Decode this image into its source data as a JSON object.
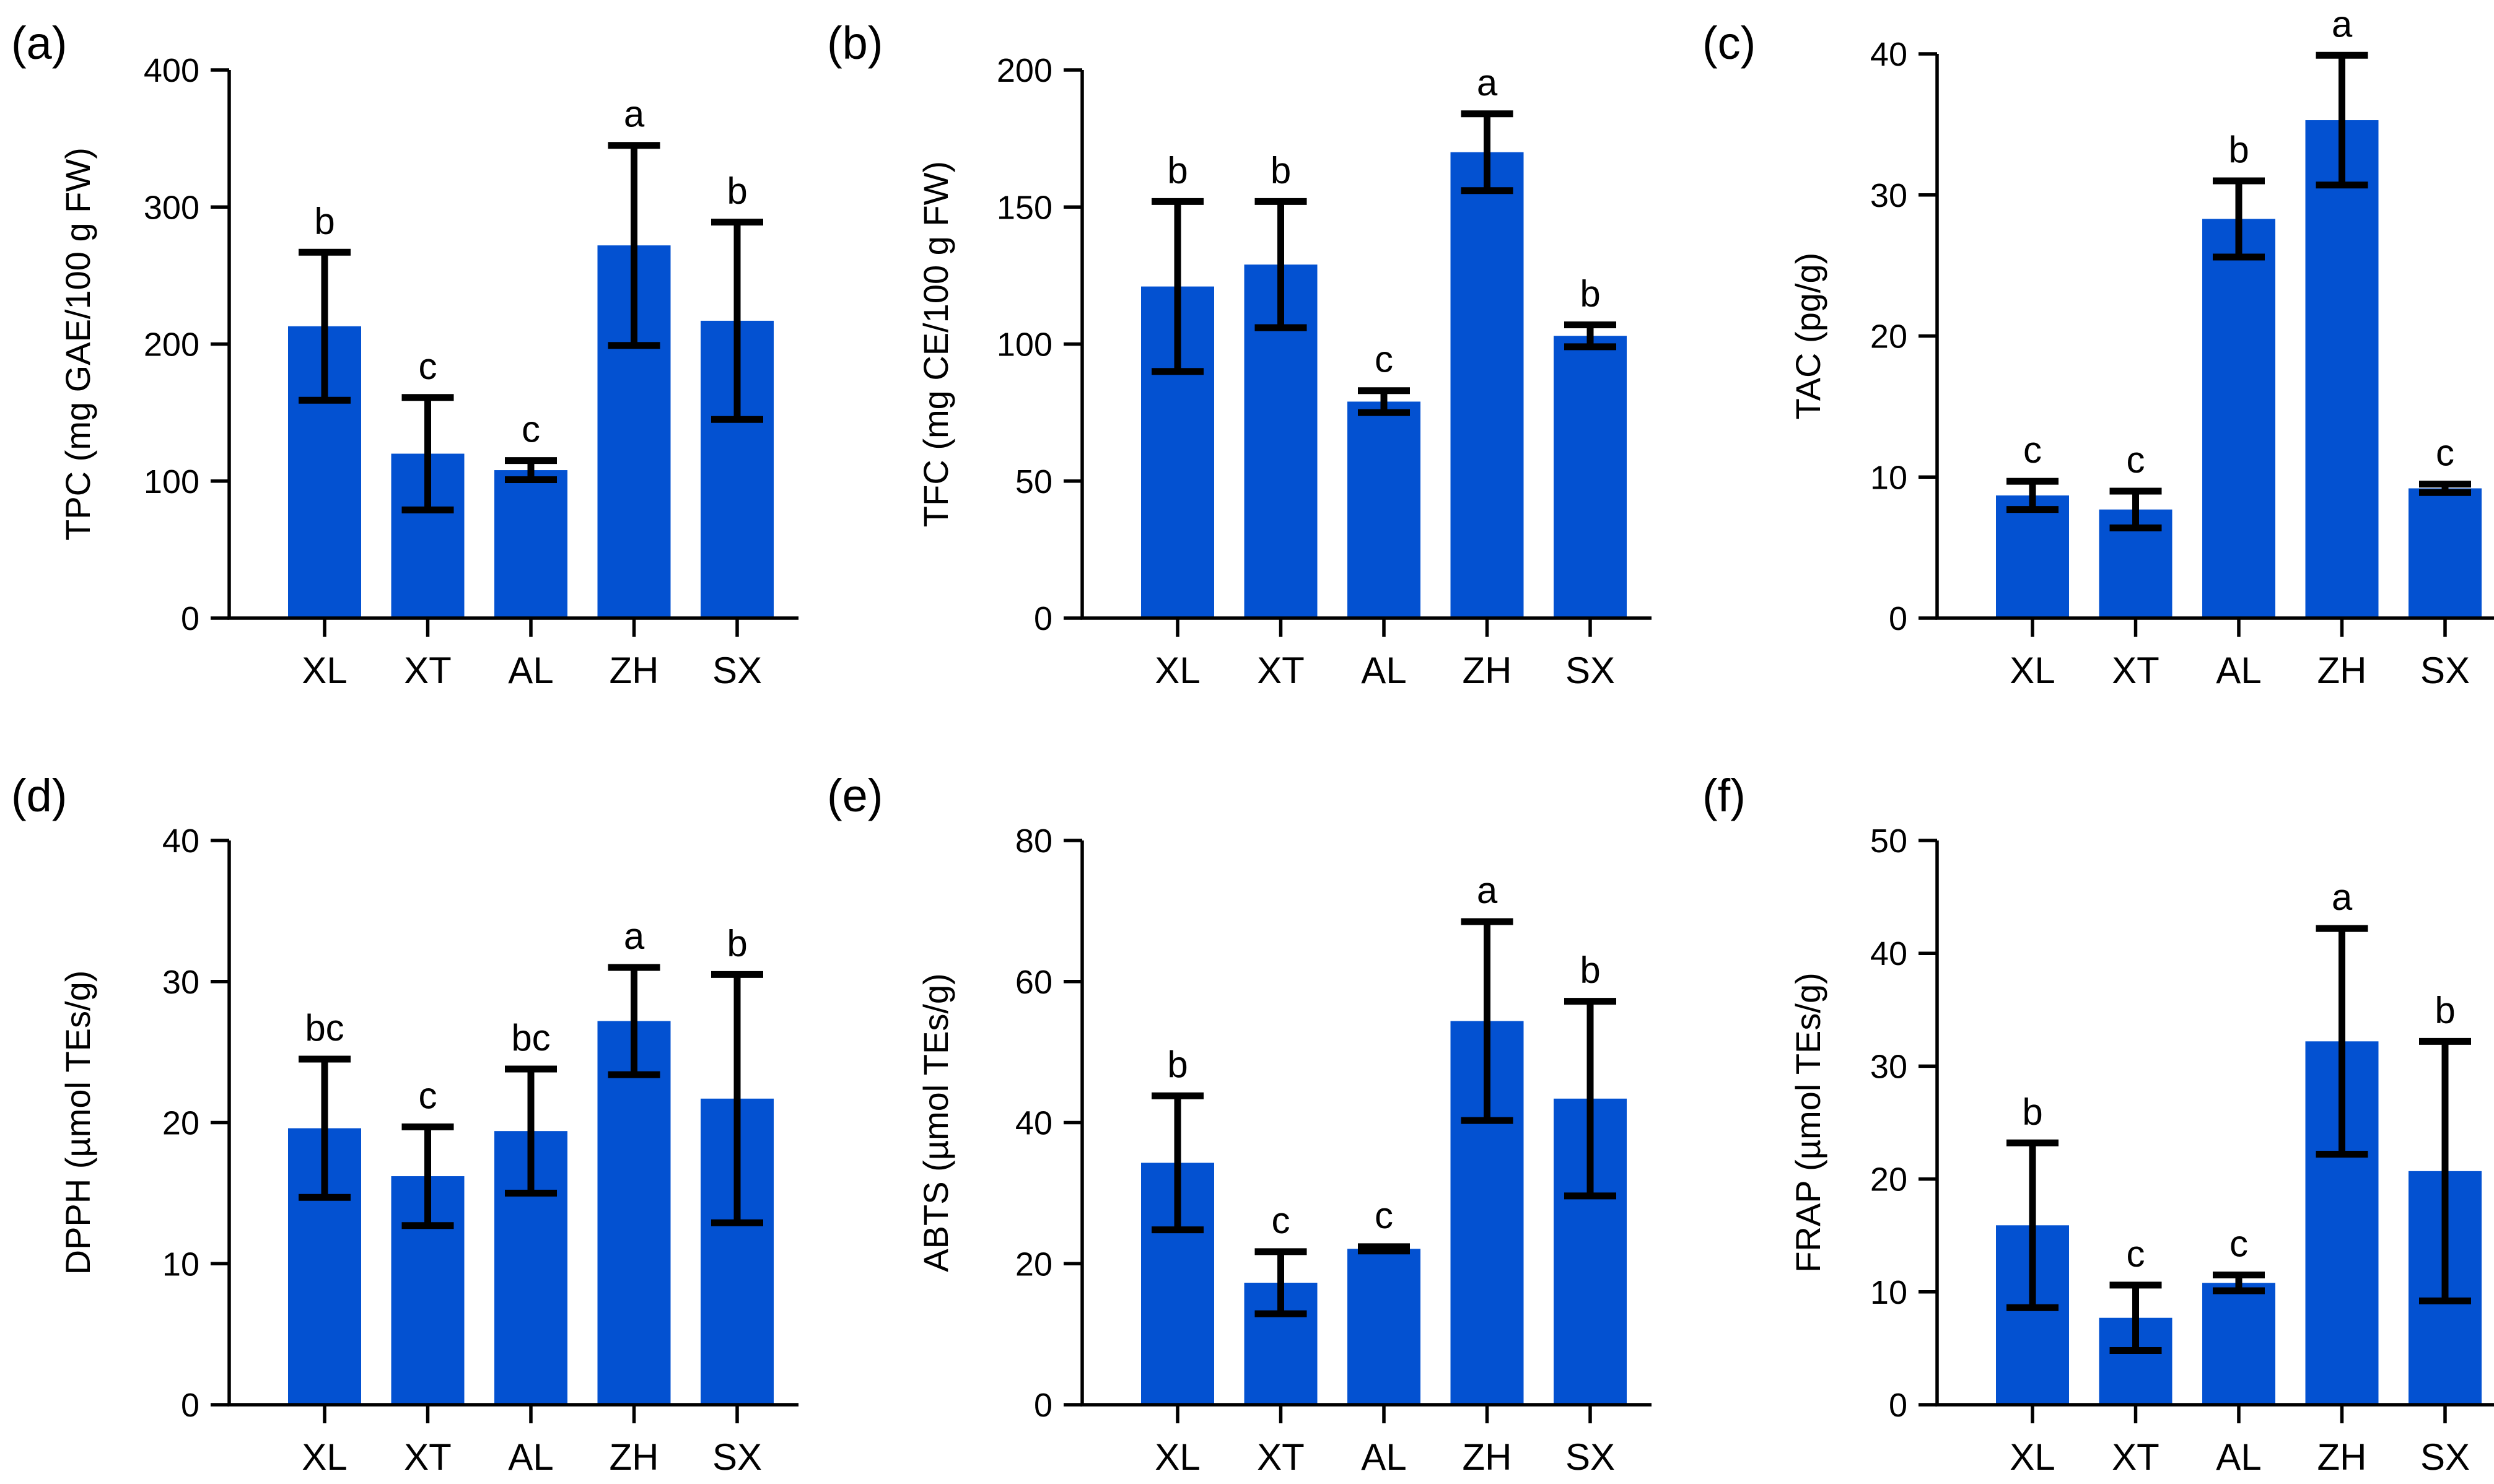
{
  "bar_color": "#0351D1",
  "error_color": "#000000",
  "chart_data": [
    {
      "type": "bar",
      "panel": "(a)",
      "ylabel": "TPC (mg GAE/100 g FW)",
      "ylim": [
        0,
        400
      ],
      "yticks": [
        0,
        100,
        200,
        300,
        400
      ],
      "categories": [
        "XL",
        "XT",
        "AL",
        "ZH",
        "SX"
      ],
      "values": [
        213,
        120,
        108,
        272,
        217
      ],
      "errors": [
        54,
        41,
        7,
        73,
        72
      ],
      "significance": [
        "b",
        "c",
        "c",
        "a",
        "b"
      ]
    },
    {
      "type": "bar",
      "panel": "(b)",
      "ylabel": "TFC (mg CE/100 g FW)",
      "ylim": [
        0,
        200
      ],
      "yticks": [
        0,
        50,
        100,
        150,
        200
      ],
      "categories": [
        "XL",
        "XT",
        "AL",
        "ZH",
        "SX"
      ],
      "values": [
        121,
        129,
        79,
        170,
        103
      ],
      "errors": [
        31,
        23,
        4,
        14,
        4
      ],
      "significance": [
        "b",
        "b",
        "c",
        "a",
        "b"
      ]
    },
    {
      "type": "bar",
      "panel": "(c)",
      "ylabel": "TAC (pg/g)",
      "ylim": [
        0,
        40
      ],
      "yticks": [
        0,
        10,
        20,
        30,
        40
      ],
      "categories": [
        "XL",
        "XT",
        "AL",
        "ZH",
        "SX"
      ],
      "values": [
        8.7,
        7.7,
        28.3,
        35.3,
        9.2
      ],
      "errors": [
        1.0,
        1.3,
        2.7,
        4.6,
        0.3
      ],
      "significance": [
        "c",
        "c",
        "b",
        "a",
        "c"
      ]
    },
    {
      "type": "bar",
      "panel": "(d)",
      "ylabel": "DPPH (µmol TEs/g)",
      "ylim": [
        0,
        40
      ],
      "yticks": [
        0,
        10,
        20,
        30,
        40
      ],
      "categories": [
        "XL",
        "XT",
        "AL",
        "ZH",
        "SX"
      ],
      "values": [
        19.6,
        16.2,
        19.4,
        27.2,
        21.7
      ],
      "errors": [
        4.9,
        3.5,
        4.4,
        3.8,
        8.8
      ],
      "significance": [
        "bc",
        "c",
        "bc",
        "a",
        "b"
      ]
    },
    {
      "type": "bar",
      "panel": "(e)",
      "ylabel": "ABTS (µmol TEs/g)",
      "ylim": [
        0,
        80
      ],
      "yticks": [
        0,
        20,
        40,
        60,
        80
      ],
      "categories": [
        "XL",
        "XT",
        "AL",
        "ZH",
        "SX"
      ],
      "values": [
        34.3,
        17.3,
        22.1,
        54.4,
        43.4
      ],
      "errors": [
        9.5,
        4.4,
        0.3,
        14.1,
        13.8
      ],
      "significance": [
        "b",
        "c",
        "c",
        "a",
        "b"
      ]
    },
    {
      "type": "bar",
      "panel": "(f)",
      "ylabel": "FRAP (µmol TEs/g)",
      "ylim": [
        0,
        50
      ],
      "yticks": [
        0,
        10,
        20,
        30,
        40,
        50
      ],
      "categories": [
        "XL",
        "XT",
        "AL",
        "ZH",
        "SX"
      ],
      "values": [
        15.9,
        7.7,
        10.8,
        32.2,
        20.7
      ],
      "errors": [
        7.3,
        2.9,
        0.7,
        10.0,
        11.5
      ],
      "significance": [
        "b",
        "c",
        "c",
        "a",
        "b"
      ]
    }
  ]
}
